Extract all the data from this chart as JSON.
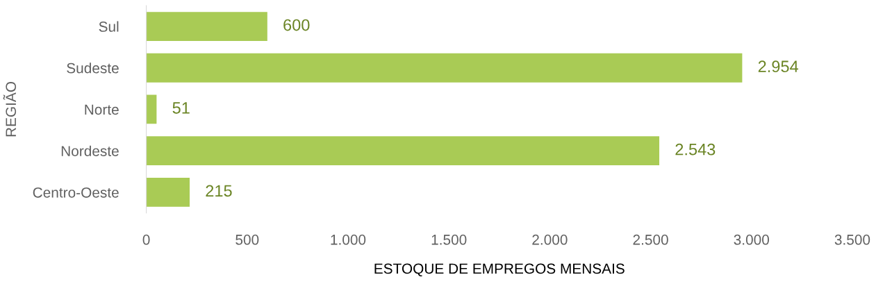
{
  "chart_data": {
    "type": "bar",
    "orientation": "horizontal",
    "xlabel": "ESTOQUE DE EMPREGOS MENSAIS",
    "ylabel": "REGIÃO",
    "categories": [
      "Sul",
      "Sudeste",
      "Norte",
      "Nordeste",
      "Centro-Oeste"
    ],
    "values": [
      600,
      2954,
      51,
      2543,
      215
    ],
    "value_labels": [
      "600",
      "2.954",
      "51",
      "2.543",
      "215"
    ],
    "color": "#a9cb55",
    "xlim": [
      0,
      3500
    ],
    "xticks": [
      0,
      500,
      {
        "value": 1000,
        "label": "1.000"
      },
      {
        "value": 1500,
        "label": "1.500"
      },
      {
        "value": 2000,
        "label": "2.000"
      },
      {
        "value": 2500,
        "label": "2.500"
      },
      {
        "value": 3000,
        "label": "3.000"
      },
      {
        "value": 3500,
        "label": "3.500"
      }
    ],
    "grid": false
  }
}
